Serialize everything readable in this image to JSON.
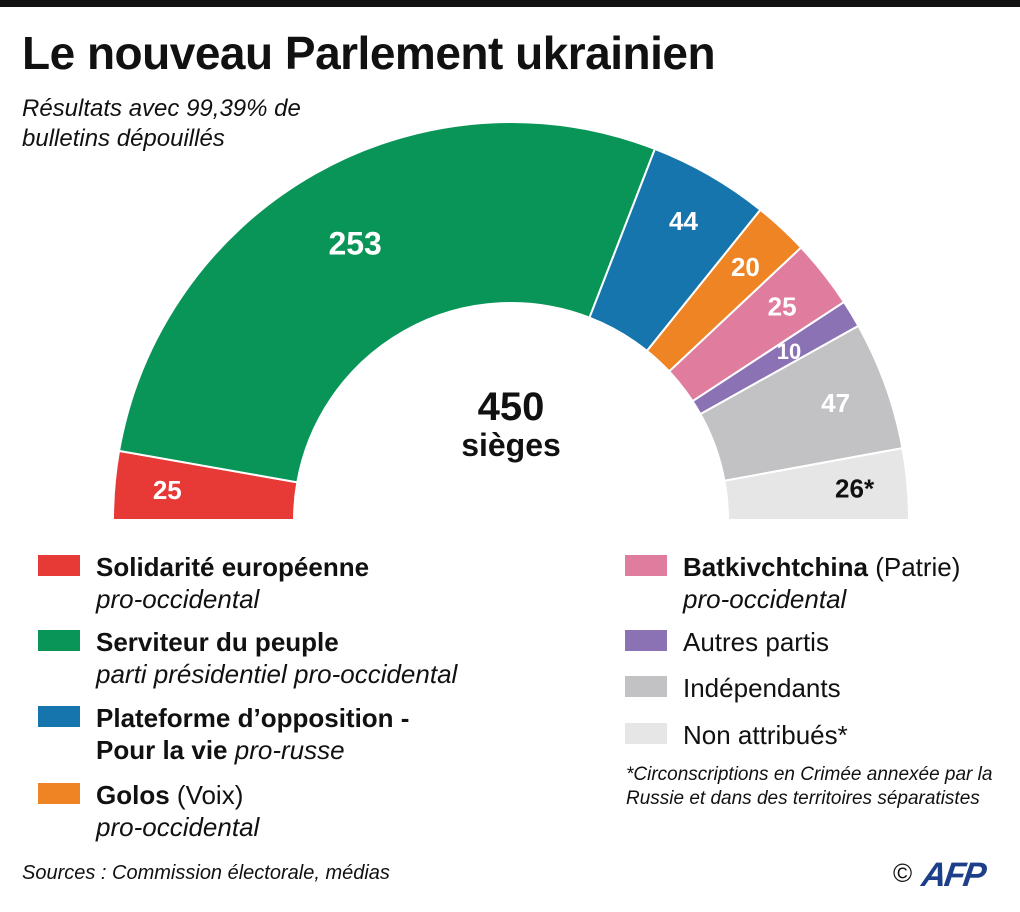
{
  "title": "Le nouveau Parlement ukrainien",
  "subtitle": "Résultats avec 99,39% de bulletins dépouillés",
  "center": {
    "total": "450",
    "label": "sièges"
  },
  "chart_data": {
    "type": "pie",
    "shape": "half-donut",
    "total_seats": 450,
    "series": [
      {
        "name": "Solidarité européenne",
        "value": 25,
        "label": "25",
        "color": "#e73a36"
      },
      {
        "name": "Serviteur du peuple",
        "value": 253,
        "label": "253",
        "color": "#0a9558"
      },
      {
        "name": "Plateforme d’opposition - Pour la vie",
        "value": 44,
        "label": "44",
        "color": "#1675ad"
      },
      {
        "name": "Golos",
        "value": 20,
        "label": "20",
        "color": "#ee8424"
      },
      {
        "name": "Batkivchtchina",
        "value": 25,
        "label": "25",
        "color": "#e07d9f"
      },
      {
        "name": "Autres partis",
        "value": 10,
        "label": "10",
        "color": "#8b72b5"
      },
      {
        "name": "Indépendants",
        "value": 47,
        "label": "47",
        "color": "#c2c2c4"
      },
      {
        "name": "Non attribués*",
        "value": 26,
        "label": "26*",
        "color": "#e6e6e7"
      }
    ]
  },
  "legend_left": [
    {
      "name": "Solidarité européenne",
      "extra": "",
      "desc": "pro-occidental",
      "desc_inline": false,
      "color": "#e73a36"
    },
    {
      "name": "Serviteur du peuple",
      "extra": "",
      "desc": "parti présidentiel pro-occidental",
      "desc_inline": false,
      "color": "#0a9558"
    },
    {
      "name": "Plateforme d’opposition -",
      "name2": "Pour la vie",
      "extra": "",
      "desc": "pro-russe",
      "desc_inline": true,
      "color": "#1675ad"
    },
    {
      "name": "Golos",
      "extra": "(Voix)",
      "desc": "pro-occidental",
      "desc_inline": false,
      "color": "#ee8424"
    }
  ],
  "legend_right": [
    {
      "name": "Batkivchtchina",
      "extra": "(Patrie)",
      "desc": "pro-occidental",
      "color": "#e07d9f"
    },
    {
      "plain": "Autres partis",
      "color": "#8b72b5"
    },
    {
      "plain": "Indépendants",
      "color": "#c2c2c4"
    },
    {
      "plain": "Non attribués*",
      "color": "#e6e6e7"
    }
  ],
  "footnote": "*Circonscriptions en Crimée annexée par la Russie et dans des territoires séparatistes",
  "sources": "Sources : Commission électorale, médias",
  "copyright": "©",
  "logo": "AFP"
}
